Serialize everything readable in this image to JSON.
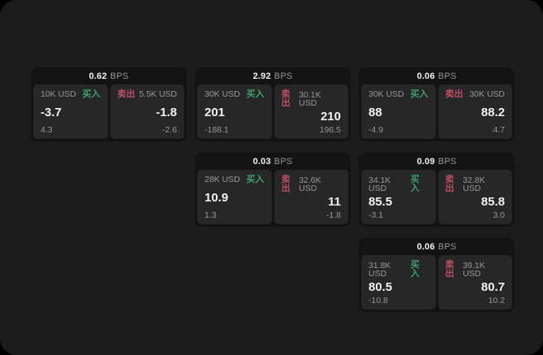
{
  "colors": {
    "page_bg": "#000000",
    "window_bg": "#1c1c1c",
    "card_bg": "#131313",
    "panel_bg": "#272727",
    "text_primary": "#f2f2f2",
    "text_secondary": "#979797",
    "buy_green": "#3ba368",
    "sell_red": "#bb4f64"
  },
  "labels": {
    "bps_unit": "BPS",
    "buy": "买入",
    "sell": "卖出"
  },
  "cards": [
    {
      "bps": "0.62",
      "row": 1,
      "col": 1,
      "buy": {
        "amount": "10K USD",
        "price": "-3.7",
        "delta": "4.3"
      },
      "sell": {
        "amount": "5.5K USD",
        "price": "-1.8",
        "delta": "-2.6"
      }
    },
    {
      "bps": "2.92",
      "row": 1,
      "col": 2,
      "buy": {
        "amount": "30K USD",
        "price": "201",
        "delta": "-188.1"
      },
      "sell": {
        "amount": "30.1K USD",
        "price": "210",
        "delta": "196.5"
      }
    },
    {
      "bps": "0.06",
      "row": 1,
      "col": 3,
      "buy": {
        "amount": "30K USD",
        "price": "88",
        "delta": "-4.9"
      },
      "sell": {
        "amount": "30K USD",
        "price": "88.2",
        "delta": "4.7"
      }
    },
    {
      "bps": "0.03",
      "row": 2,
      "col": 2,
      "buy": {
        "amount": "28K USD",
        "price": "10.9",
        "delta": "1.3"
      },
      "sell": {
        "amount": "32.6K USD",
        "price": "11",
        "delta": "-1.8"
      }
    },
    {
      "bps": "0.09",
      "row": 2,
      "col": 3,
      "buy": {
        "amount": "34.1K USD",
        "price": "85.5",
        "delta": "-3.1"
      },
      "sell": {
        "amount": "32.8K USD",
        "price": "85.8",
        "delta": "3.0"
      }
    },
    {
      "bps": "0.06",
      "row": 3,
      "col": 3,
      "buy": {
        "amount": "31.8K USD",
        "price": "80.5",
        "delta": "-10.8"
      },
      "sell": {
        "amount": "39.1K USD",
        "price": "80.7",
        "delta": "10.2"
      }
    }
  ]
}
